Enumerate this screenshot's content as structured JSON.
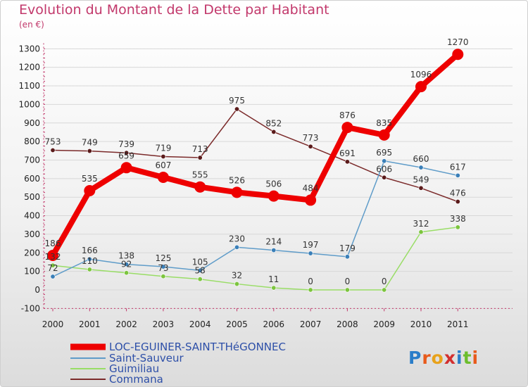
{
  "title": "Evolution du Montant de la Dette par Habitant",
  "unit": "(en €)",
  "brand": "Proxiti",
  "chart_data": {
    "type": "line",
    "x": [
      "2000",
      "2001",
      "2002",
      "2003",
      "2004",
      "2005",
      "2006",
      "2007",
      "2008",
      "2009",
      "2010",
      "2011"
    ],
    "ylim": [
      -100,
      1300
    ],
    "yticks": [
      -100,
      0,
      100,
      200,
      300,
      400,
      500,
      600,
      700,
      800,
      900,
      1000,
      1100,
      1200,
      1300
    ],
    "grid": "horizontal",
    "legend_position": "bottom",
    "series": [
      {
        "name": "LOC-EGUINER-SAINT-THéGONNEC",
        "color": "#ee0000",
        "values": [
          186,
          535,
          659,
          607,
          555,
          526,
          506,
          484,
          876,
          835,
          1096,
          1270
        ]
      },
      {
        "name": "Saint-Sauveur",
        "color": "#5f9cc9",
        "values": [
          72,
          166,
          138,
          125,
          105,
          230,
          214,
          197,
          179,
          695,
          660,
          617
        ]
      },
      {
        "name": "Guimiliau",
        "color": "#99dd66",
        "values": [
          132,
          110,
          92,
          73,
          58,
          32,
          11,
          0,
          0,
          0,
          312,
          338
        ]
      },
      {
        "name": "Commana",
        "color": "#7b2a2a",
        "values": [
          753,
          749,
          739,
          719,
          713,
          975,
          852,
          773,
          691,
          606,
          549,
          476
        ]
      }
    ]
  }
}
